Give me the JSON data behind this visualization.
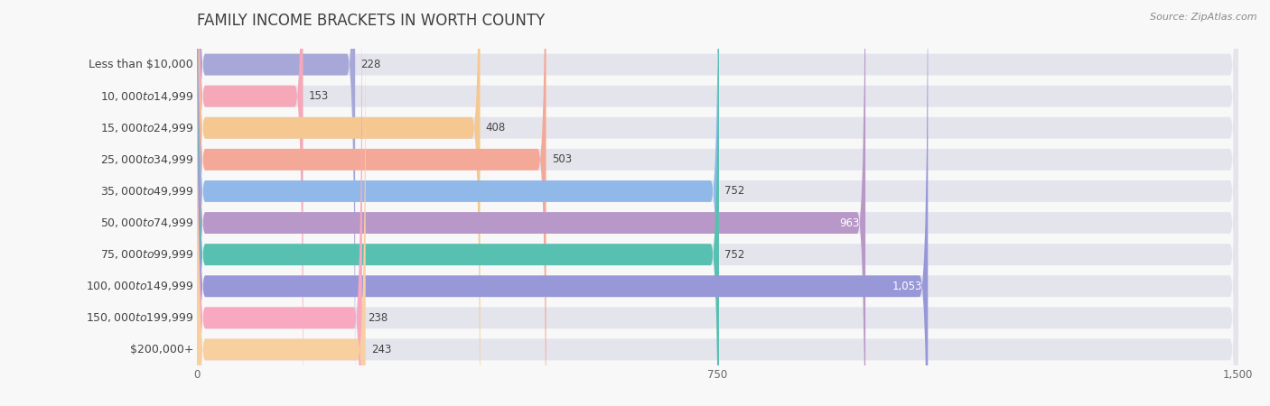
{
  "title": "FAMILY INCOME BRACKETS IN WORTH COUNTY",
  "source": "Source: ZipAtlas.com",
  "categories": [
    "Less than $10,000",
    "$10,000 to $14,999",
    "$15,000 to $24,999",
    "$25,000 to $34,999",
    "$35,000 to $49,999",
    "$50,000 to $74,999",
    "$75,000 to $99,999",
    "$100,000 to $149,999",
    "$150,000 to $199,999",
    "$200,000+"
  ],
  "values": [
    228,
    153,
    408,
    503,
    752,
    963,
    752,
    1053,
    238,
    243
  ],
  "bar_colors": [
    "#a8a8d8",
    "#f4a8b8",
    "#f4c890",
    "#f4a898",
    "#90b8e8",
    "#b898c8",
    "#58c0b0",
    "#9898d8",
    "#f8a8c0",
    "#f8d0a0"
  ],
  "xlim": [
    0,
    1500
  ],
  "xticks": [
    0,
    750,
    1500
  ],
  "background_color": "#f8f8f8",
  "bar_bg_color": "#e4e4ec",
  "title_fontsize": 12,
  "label_fontsize": 9,
  "value_fontsize": 8.5,
  "source_fontsize": 8,
  "bar_height": 0.68,
  "value_inside_indices": [
    5,
    7
  ],
  "value_labels": [
    "228",
    "153",
    "408",
    "503",
    "752",
    "963",
    "752",
    "1,053",
    "238",
    "243"
  ]
}
